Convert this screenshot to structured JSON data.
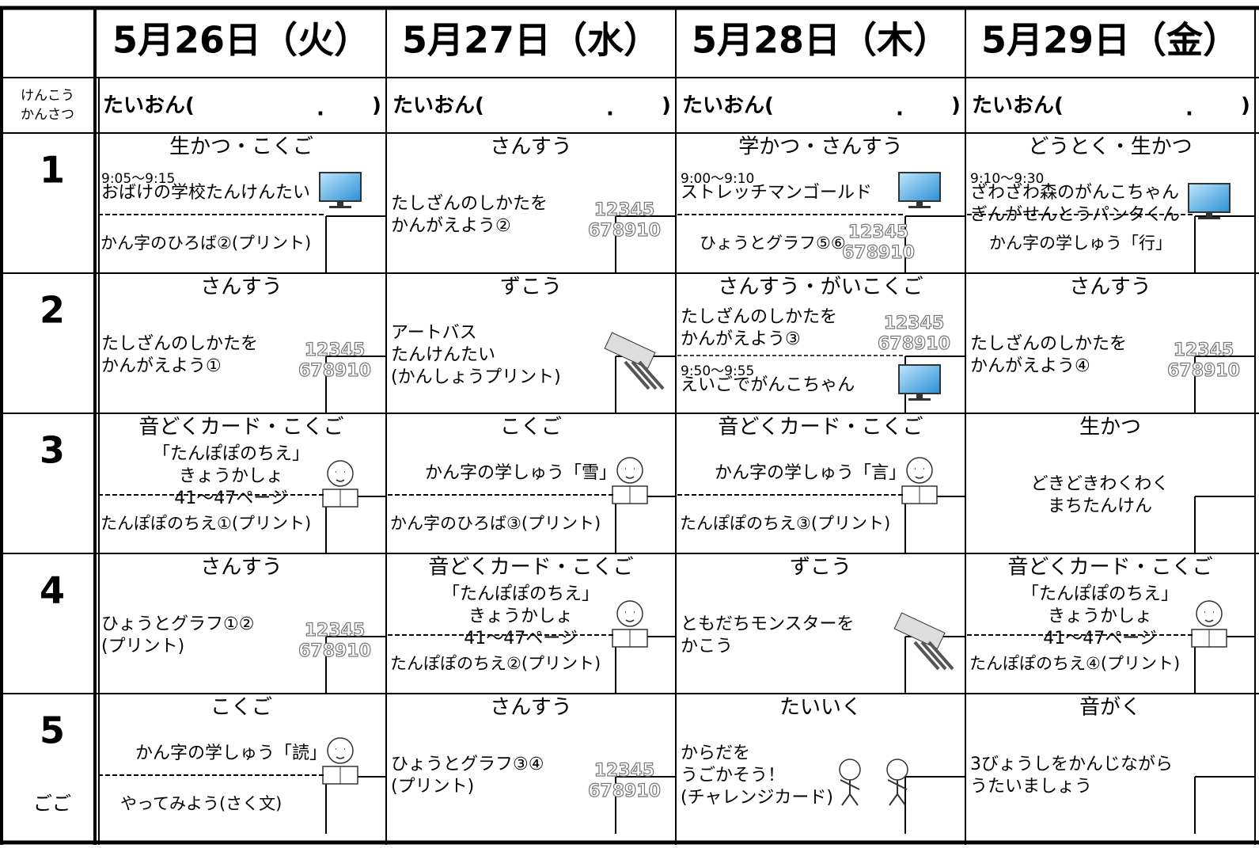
{
  "header": {
    "days": [
      "5月26日（火）",
      "5月27日（水）",
      "5月28日（木）",
      "5月29日（金）"
    ]
  },
  "health": {
    "label": [
      "けんこう",
      "かんさつ"
    ],
    "temp_open": "たいおん(",
    "temp_dot": ".",
    "temp_close": ")"
  },
  "number_icon": [
    "12345",
    "678910"
  ],
  "periods": [
    {
      "number": "1",
      "cells": [
        {
          "subject": "生かつ・こくご",
          "blocks": [
            {
              "time": "9:05〜9:15",
              "lines": [
                "おばけの学校たんけんたい"
              ],
              "icon": "monitor"
            }
          ],
          "bottom": "かん字のひろば②(プリント)"
        },
        {
          "subject": "さんすう",
          "blocks": [
            {
              "lines": [
                "たしざんのしかたを",
                "かんがえよう②"
              ],
              "icon": "numbers"
            }
          ]
        },
        {
          "subject": "学かつ・さんすう",
          "blocks": [
            {
              "time": "9:00〜9:10",
              "lines": [
                "ストレッチマンゴールド"
              ],
              "icon": "monitor"
            }
          ],
          "bottom": "ひょうとグラフ⑤⑥"
        },
        {
          "subject": "どうとく・生かつ",
          "blocks": [
            {
              "time": "9:10〜9:30",
              "lines": [
                "ざわざわ森のがんこちゃん",
                "ぎんがせんとうパンタくん"
              ],
              "icon": "monitor"
            }
          ],
          "bottom": "かん字の学しゅう「行」"
        }
      ]
    },
    {
      "number": "2",
      "cells": [
        {
          "subject": "さんすう",
          "blocks": [
            {
              "lines": [
                "たしざんのしかたを",
                "かんがえよう①"
              ],
              "icon": "numbers"
            }
          ]
        },
        {
          "subject": "ずこう",
          "blocks": [
            {
              "lines": [
                "アートバス",
                "たんけんたい",
                "(かんしょうプリント)"
              ],
              "icon": "crayons"
            }
          ]
        },
        {
          "subject": "さんすう・がいこくご",
          "blocks": [
            {
              "lines": [
                "たしざんのしかたを",
                "かんがえよう③"
              ],
              "icon": "numbers"
            },
            {
              "time": "9:50〜9:55",
              "lines": [
                "えいごでがんこちゃん"
              ],
              "icon": "monitor"
            }
          ]
        },
        {
          "subject": "さんすう",
          "blocks": [
            {
              "lines": [
                "たしざんのしかたを",
                "かんがえよう④"
              ],
              "icon": "numbers"
            }
          ]
        }
      ]
    },
    {
      "number": "3",
      "cells": [
        {
          "subject": "音どくカード・こくご",
          "align": "center",
          "blocks": [
            {
              "lines": [
                "「たんぽぽのちえ」",
                "きょうかしょ",
                "41〜47ページ"
              ],
              "icon": "kid"
            }
          ],
          "bottom": "たんぽぽのちえ①(プリント)"
        },
        {
          "subject": "こくご",
          "align": "center",
          "blocks": [
            {
              "lines": [
                "かん字の学しゅう「雪」"
              ],
              "icon": "kid"
            }
          ],
          "bottom": "かん字のひろば③(プリント)"
        },
        {
          "subject": "音どくカード・こくご",
          "align": "center",
          "blocks": [
            {
              "lines": [
                "かん字の学しゅう「言」"
              ],
              "icon": "kid"
            }
          ],
          "bottom": "たんぽぽのちえ③(プリント)"
        },
        {
          "subject": "生かつ",
          "align": "center",
          "blocks": [
            {
              "lines": [
                "どきどきわくわく",
                "まちたんけん"
              ]
            }
          ]
        }
      ]
    },
    {
      "number": "4",
      "cells": [
        {
          "subject": "さんすう",
          "blocks": [
            {
              "lines": [
                "ひょうとグラフ①②",
                "(プリント)"
              ],
              "icon": "numbers"
            }
          ]
        },
        {
          "subject": "音どくカード・こくご",
          "align": "center",
          "blocks": [
            {
              "lines": [
                "「たんぽぽのちえ」",
                "きょうかしょ",
                "41〜47ページ"
              ],
              "icon": "kid"
            }
          ],
          "bottom": "たんぽぽのちえ②(プリント)"
        },
        {
          "subject": "ずこう",
          "blocks": [
            {
              "lines": [
                "ともだちモンスターを",
                "かこう"
              ],
              "icon": "crayons"
            }
          ]
        },
        {
          "subject": "音どくカード・こくご",
          "align": "center",
          "blocks": [
            {
              "lines": [
                "「たんぽぽのちえ」",
                "きょうかしょ",
                "41〜47ページ"
              ],
              "icon": "kid"
            }
          ],
          "bottom": "たんぽぽのちえ④(プリント)"
        }
      ]
    },
    {
      "number": "5",
      "note": "ごご",
      "cells": [
        {
          "subject": "こくご",
          "align": "center",
          "blocks": [
            {
              "lines": [
                "かん字の学しゅう「読」"
              ],
              "icon": "kid"
            }
          ],
          "bottom": "やってみよう(さく文)"
        },
        {
          "subject": "さんすう",
          "blocks": [
            {
              "lines": [
                "ひょうとグラフ③④",
                "(プリント)"
              ],
              "icon": "numbers"
            }
          ]
        },
        {
          "subject": "たいいく",
          "blocks": [
            {
              "lines": [
                "からだを",
                "うごかそう！",
                "(チャレンジカード)"
              ],
              "icon": "kids"
            }
          ]
        },
        {
          "subject": "音がく",
          "blocks": [
            {
              "lines": [
                "3びょうしをかんじながら",
                "うたいましょう"
              ]
            }
          ]
        }
      ]
    }
  ]
}
